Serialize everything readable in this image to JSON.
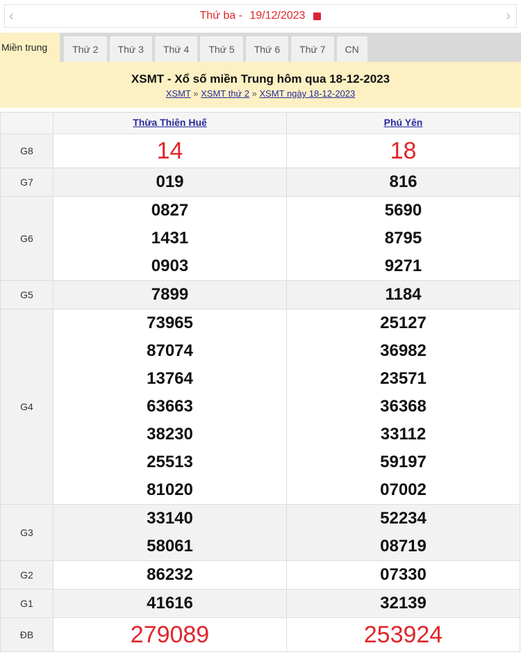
{
  "date_bar": {
    "label": "Thứ ba - ",
    "date": "19/12/2023",
    "prev": "‹",
    "next": "›"
  },
  "tabs": [
    "Miền trung",
    "Thứ 2",
    "Thứ 3",
    "Thứ 4",
    "Thứ 5",
    "Thứ 6",
    "Thứ 7",
    "CN"
  ],
  "banner": {
    "title": "XSMT - Xổ số miền Trung hôm qua 18-12-2023",
    "breadcrumb": [
      "XSMT",
      "XSMT thứ 2",
      "XSMT ngày 18-12-2023"
    ],
    "sep": " » "
  },
  "provinces": [
    "Thừa Thiên Huế",
    "Phú Yên"
  ],
  "prizes": [
    {
      "label": "G8",
      "a": [
        "14"
      ],
      "b": [
        "18"
      ]
    },
    {
      "label": "G7",
      "a": [
        "019"
      ],
      "b": [
        "816"
      ]
    },
    {
      "label": "G6",
      "a": [
        "0827",
        "1431",
        "0903"
      ],
      "b": [
        "5690",
        "8795",
        "9271"
      ]
    },
    {
      "label": "G5",
      "a": [
        "7899"
      ],
      "b": [
        "1184"
      ]
    },
    {
      "label": "G4",
      "a": [
        "73965",
        "87074",
        "13764",
        "63663",
        "38230",
        "25513",
        "81020"
      ],
      "b": [
        "25127",
        "36982",
        "23571",
        "36368",
        "33112",
        "59197",
        "07002"
      ]
    },
    {
      "label": "G3",
      "a": [
        "33140",
        "58061"
      ],
      "b": [
        "52234",
        "08719"
      ]
    },
    {
      "label": "G2",
      "a": [
        "86232"
      ],
      "b": [
        "07330"
      ]
    },
    {
      "label": "G1",
      "a": [
        "41616"
      ],
      "b": [
        "32139"
      ]
    },
    {
      "label": "ĐB",
      "a": [
        "279089"
      ],
      "b": [
        "253924"
      ]
    }
  ]
}
